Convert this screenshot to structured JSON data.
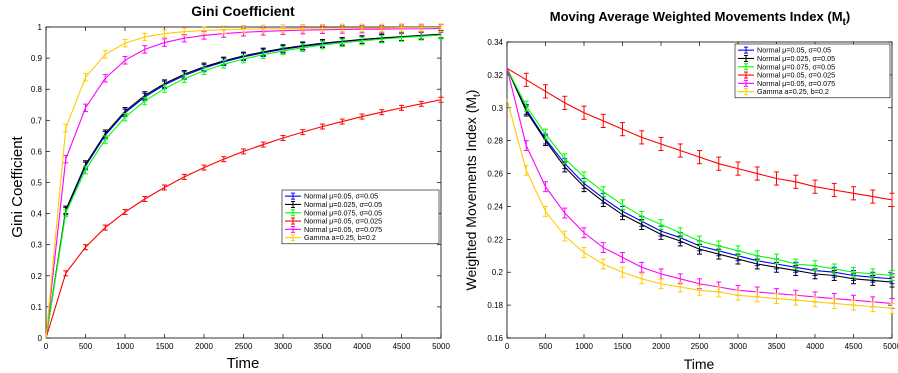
{
  "chart_data": [
    {
      "type": "line",
      "title": "Gini Coefficient",
      "xlabel": "Time",
      "ylabel": "Gini Coefficient",
      "xlim": [
        0,
        5000
      ],
      "ylim": [
        0,
        1
      ],
      "xticks": [
        0,
        500,
        1000,
        1500,
        2000,
        2500,
        3000,
        3500,
        4000,
        4500,
        5000
      ],
      "yticks": [
        0,
        0.1,
        0.2,
        0.3,
        0.4,
        0.5,
        0.6,
        0.7,
        0.8,
        0.9,
        1
      ],
      "ytick_labels": [
        "0",
        "0.1",
        "0.2",
        "0.3",
        "0.4",
        "0.5",
        "0.6",
        "0.7",
        "0.8",
        "0.9",
        "1"
      ],
      "grid": false,
      "error_bars": true,
      "legend_position": "center-right",
      "x": [
        0,
        250,
        500,
        750,
        1000,
        1250,
        1500,
        1750,
        2000,
        2250,
        2500,
        2750,
        3000,
        3250,
        3500,
        3750,
        4000,
        4250,
        4500,
        4750,
        5000
      ],
      "series": [
        {
          "name": "Normal μ=0.05, σ=0.05",
          "color": "#0000ff",
          "err": 0.012,
          "values": [
            0,
            0.408,
            0.553,
            0.652,
            0.724,
            0.775,
            0.814,
            0.844,
            0.868,
            0.888,
            0.904,
            0.917,
            0.928,
            0.938,
            0.946,
            0.953,
            0.959,
            0.964,
            0.968,
            0.972,
            0.976
          ]
        },
        {
          "name": "Normal μ=0.025, σ=0.05",
          "color": "#000000",
          "err": 0.012,
          "values": [
            0,
            0.412,
            0.558,
            0.657,
            0.729,
            0.78,
            0.818,
            0.848,
            0.872,
            0.891,
            0.907,
            0.92,
            0.931,
            0.94,
            0.948,
            0.954,
            0.96,
            0.965,
            0.969,
            0.973,
            0.977
          ]
        },
        {
          "name": "Normal μ=0.075, σ=0.05",
          "color": "#00ff00",
          "err": 0.012,
          "values": [
            0,
            0.402,
            0.54,
            0.638,
            0.71,
            0.762,
            0.802,
            0.834,
            0.859,
            0.88,
            0.897,
            0.911,
            0.923,
            0.933,
            0.942,
            0.949,
            0.955,
            0.961,
            0.966,
            0.97,
            0.974
          ]
        },
        {
          "name": "Normal μ=0.05, σ=0.025",
          "color": "#ff0000",
          "err": 0.008,
          "values": [
            0,
            0.208,
            0.292,
            0.355,
            0.405,
            0.447,
            0.484,
            0.518,
            0.548,
            0.575,
            0.6,
            0.622,
            0.643,
            0.662,
            0.68,
            0.696,
            0.712,
            0.726,
            0.74,
            0.753,
            0.766
          ]
        },
        {
          "name": "Normal μ=0.05, σ=0.075",
          "color": "#ff00ff",
          "err": 0.012,
          "values": [
            0,
            0.575,
            0.74,
            0.835,
            0.893,
            0.928,
            0.95,
            0.964,
            0.973,
            0.979,
            0.983,
            0.986,
            0.988,
            0.99,
            0.991,
            0.992,
            0.993,
            0.993,
            0.994,
            0.994,
            0.995
          ]
        },
        {
          "name": "Gamma a=0.25, b=0.2",
          "color": "#ffcc00",
          "err": 0.012,
          "values": [
            0,
            0.675,
            0.838,
            0.912,
            0.948,
            0.968,
            0.979,
            0.985,
            0.989,
            0.991,
            0.993,
            0.994,
            0.995,
            0.996,
            0.996,
            0.997,
            0.997,
            0.997,
            0.998,
            0.998,
            0.998
          ]
        }
      ]
    },
    {
      "type": "line",
      "title": "Moving Average Weighted Movements Index (M",
      "title_sub": "t",
      "title_tail": ")",
      "xlabel": "Time",
      "ylabel": "Weighted Movements Index (M",
      "ylabel_sub": "t",
      "ylabel_tail": ")",
      "xlim": [
        0,
        5000
      ],
      "ylim": [
        0.16,
        0.34
      ],
      "xticks": [
        0,
        500,
        1000,
        1500,
        2000,
        2500,
        3000,
        3500,
        4000,
        4500,
        5000
      ],
      "yticks": [
        0.16,
        0.18,
        0.2,
        0.22,
        0.24,
        0.26,
        0.28,
        0.3,
        0.32,
        0.34
      ],
      "ytick_labels": [
        "0.16",
        "0.18",
        "0.2",
        "0.22",
        "0.24",
        "0.26",
        "0.28",
        "0.3",
        "0.32",
        "0.34"
      ],
      "grid": false,
      "error_bars": true,
      "legend_position": "top-right",
      "x": [
        0,
        250,
        500,
        750,
        1000,
        1250,
        1500,
        1750,
        2000,
        2250,
        2500,
        2750,
        3000,
        3250,
        3500,
        3750,
        4000,
        4250,
        4500,
        4750,
        5000
      ],
      "series": [
        {
          "name": "Normal μ=0.05, σ=0.05",
          "color": "#0000ff",
          "err": 0.003,
          "values": [
            0.324,
            0.299,
            0.281,
            0.266,
            0.254,
            0.245,
            0.237,
            0.231,
            0.225,
            0.221,
            0.216,
            0.213,
            0.21,
            0.207,
            0.205,
            0.203,
            0.201,
            0.2,
            0.198,
            0.197,
            0.196
          ]
        },
        {
          "name": "Normal μ=0.025, σ=0.05",
          "color": "#000000",
          "err": 0.003,
          "values": [
            0.324,
            0.298,
            0.28,
            0.264,
            0.252,
            0.243,
            0.235,
            0.229,
            0.223,
            0.219,
            0.214,
            0.211,
            0.208,
            0.205,
            0.203,
            0.201,
            0.199,
            0.198,
            0.196,
            0.195,
            0.194
          ]
        },
        {
          "name": "Normal μ=0.075, σ=0.05",
          "color": "#00ff00",
          "err": 0.003,
          "values": [
            0.324,
            0.301,
            0.284,
            0.269,
            0.258,
            0.249,
            0.241,
            0.234,
            0.229,
            0.224,
            0.219,
            0.216,
            0.213,
            0.21,
            0.208,
            0.205,
            0.204,
            0.202,
            0.2,
            0.199,
            0.198
          ]
        },
        {
          "name": "Normal μ=0.05, σ=0.025",
          "color": "#ff0000",
          "err": 0.004,
          "values": [
            0.324,
            0.317,
            0.31,
            0.303,
            0.297,
            0.292,
            0.287,
            0.282,
            0.278,
            0.274,
            0.27,
            0.266,
            0.263,
            0.26,
            0.257,
            0.255,
            0.252,
            0.25,
            0.248,
            0.246,
            0.244
          ]
        },
        {
          "name": "Normal μ=0.05, σ=0.075",
          "color": "#ff00ff",
          "err": 0.003,
          "values": [
            0.324,
            0.277,
            0.252,
            0.236,
            0.224,
            0.215,
            0.209,
            0.203,
            0.199,
            0.196,
            0.193,
            0.191,
            0.189,
            0.188,
            0.187,
            0.186,
            0.185,
            0.184,
            0.183,
            0.182,
            0.181
          ]
        },
        {
          "name": "Gamma a=0.25, b=0.2",
          "color": "#ffcc00",
          "err": 0.003,
          "values": [
            0.305,
            0.262,
            0.237,
            0.222,
            0.212,
            0.205,
            0.2,
            0.196,
            0.193,
            0.191,
            0.189,
            0.188,
            0.186,
            0.185,
            0.184,
            0.183,
            0.182,
            0.181,
            0.18,
            0.179,
            0.178
          ]
        }
      ]
    }
  ]
}
